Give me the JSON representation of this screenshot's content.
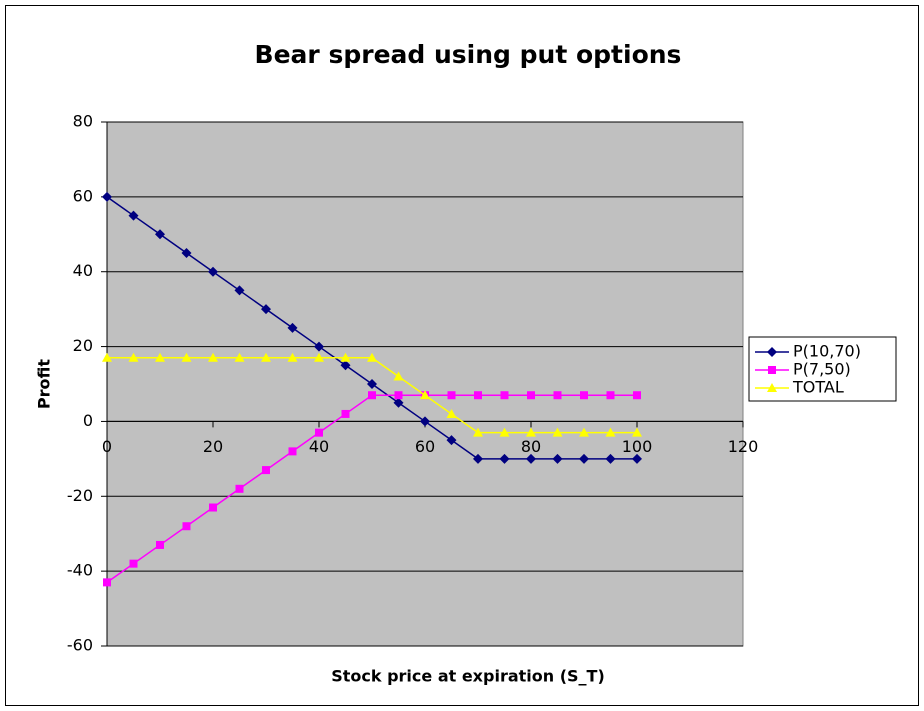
{
  "chart_data": {
    "type": "line",
    "title": "Bear spread using put options",
    "x_label": "Stock price at expiration (S_T)",
    "y_label": "Profit",
    "x": [
      0,
      5,
      10,
      15,
      20,
      25,
      30,
      35,
      40,
      45,
      50,
      55,
      60,
      65,
      70,
      75,
      80,
      85,
      90,
      95,
      100
    ],
    "series": [
      {
        "name": "P(10,70)",
        "color": "#000080",
        "marker": "diamond",
        "values": [
          60,
          55,
          50,
          45,
          40,
          35,
          30,
          25,
          20,
          15,
          10,
          5,
          0,
          -5,
          -10,
          -10,
          -10,
          -10,
          -10,
          -10,
          -10
        ]
      },
      {
        "name": "P(7,50)",
        "color": "#ff00ff",
        "marker": "square",
        "values": [
          -43,
          -38,
          -33,
          -28,
          -23,
          -18,
          -13,
          -8,
          -3,
          2,
          7,
          7,
          7,
          7,
          7,
          7,
          7,
          7,
          7,
          7,
          7
        ]
      },
      {
        "name": "TOTAL",
        "color": "#ffff00",
        "marker": "triangle",
        "values": [
          17,
          17,
          17,
          17,
          17,
          17,
          17,
          17,
          17,
          17,
          17,
          12,
          7,
          2,
          -3,
          -3,
          -3,
          -3,
          -3,
          -3,
          -3
        ]
      }
    ],
    "xlim": [
      0,
      120
    ],
    "xticks": [
      0,
      20,
      40,
      60,
      80,
      100,
      120
    ],
    "ylim": [
      -60,
      80
    ],
    "yticks": [
      -60,
      -40,
      -20,
      0,
      20,
      40,
      60,
      80
    ],
    "grid": true,
    "legend": "right"
  }
}
